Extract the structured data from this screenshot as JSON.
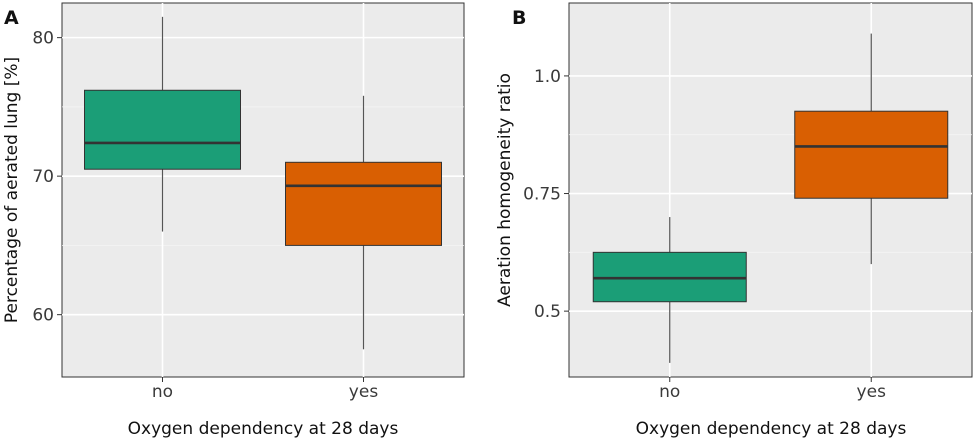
{
  "chart_data": [
    {
      "type": "box",
      "panel_label": "A",
      "xlabel": "Oxygen dependency at 28 days",
      "ylabel": "Percentage of aerated lung [%]",
      "ylim": [
        55.5,
        82.5
      ],
      "yticks": [
        60,
        70,
        80
      ],
      "ytick_labels": [
        "60",
        "70",
        "80"
      ],
      "categories": [
        "no",
        "yes"
      ],
      "boxes": [
        {
          "category": "no",
          "whisker_low": 66.0,
          "q1": 70.5,
          "median": 72.4,
          "q3": 76.2,
          "whisker_high": 81.5,
          "color": "#1b9e77"
        },
        {
          "category": "yes",
          "whisker_low": 57.5,
          "q1": 65.0,
          "median": 69.3,
          "q3": 71.0,
          "whisker_high": 75.8,
          "color": "#d95f02"
        }
      ]
    },
    {
      "type": "box",
      "panel_label": "B",
      "xlabel": "Oxygen dependency at 28 days",
      "ylabel": "Aeration homogeneity ratio",
      "ylim": [
        0.36,
        1.155
      ],
      "yticks": [
        0.5,
        0.75,
        1.0
      ],
      "ytick_labels": [
        "0.5",
        "0.75",
        "1.0"
      ],
      "categories": [
        "no",
        "yes"
      ],
      "boxes": [
        {
          "category": "no",
          "whisker_low": 0.39,
          "q1": 0.52,
          "median": 0.57,
          "q3": 0.625,
          "whisker_high": 0.7,
          "color": "#1b9e77"
        },
        {
          "category": "yes",
          "whisker_low": 0.6,
          "q1": 0.74,
          "median": 0.85,
          "q3": 0.925,
          "whisker_high": 1.09,
          "color": "#d95f02"
        }
      ]
    }
  ]
}
